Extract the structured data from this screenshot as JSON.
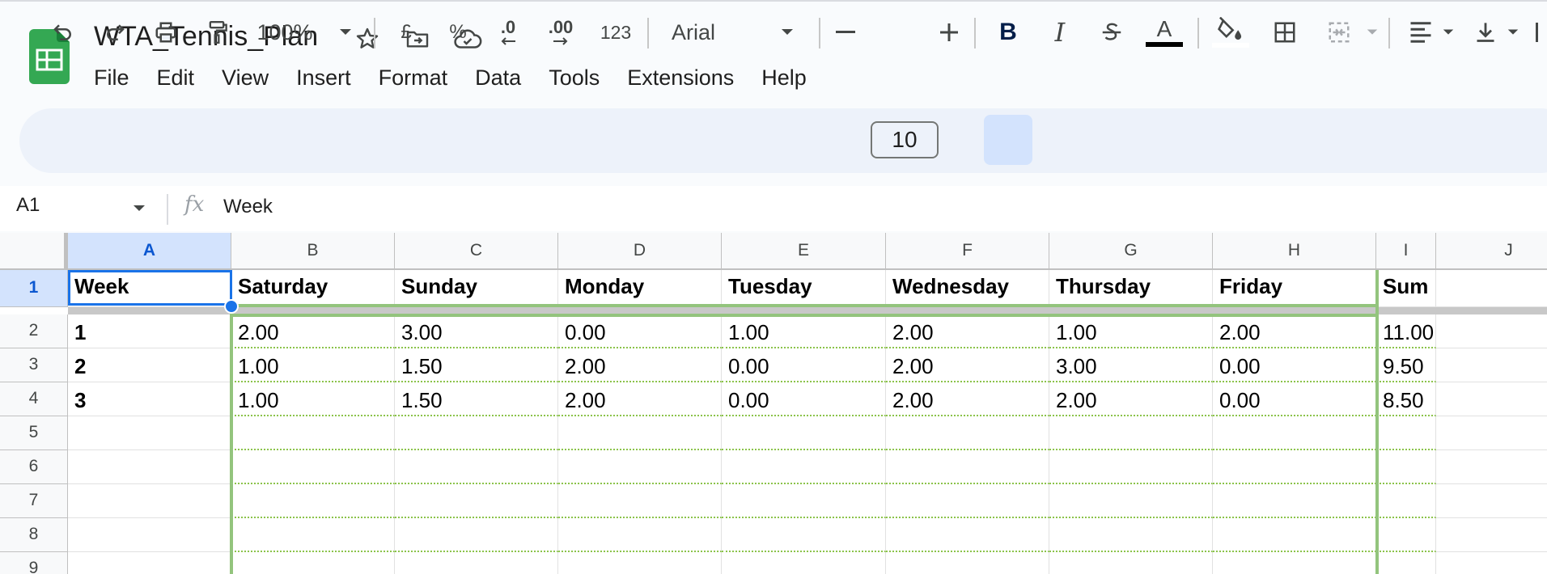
{
  "document": {
    "title": "WTA_Tennis_Plan"
  },
  "header_icons": [
    "star-icon",
    "move-to-folder-icon",
    "cloud-status-icon"
  ],
  "menu": [
    "File",
    "Edit",
    "View",
    "Insert",
    "Format",
    "Data",
    "Tools",
    "Extensions",
    "Help"
  ],
  "toolbar": {
    "zoom": "100%",
    "currency": "£",
    "percent": "%",
    "decrease_decimal": ".0",
    "increase_decimal": ".00",
    "number_format": "123",
    "font": "Arial",
    "font_size": "10",
    "text_color": "#000000",
    "active_bold": true
  },
  "formula_bar": {
    "name_box": "A1",
    "fx": "fx",
    "content": "Week"
  },
  "sheet": {
    "columns": [
      "A",
      "B",
      "C",
      "D",
      "E",
      "F",
      "G",
      "H",
      "I",
      "J"
    ],
    "selected_column": "A",
    "rows": [
      "1",
      "2",
      "3",
      "4",
      "5",
      "6",
      "7",
      "8",
      "9"
    ],
    "selected_row": "1",
    "header_row": [
      "Week",
      "Saturday",
      "Sunday",
      "Monday",
      "Tuesday",
      "Wednesday",
      "Thursday",
      "Friday",
      "Sum"
    ],
    "data_rows": [
      [
        "1",
        "2.00",
        "3.00",
        "0.00",
        "1.00",
        "2.00",
        "1.00",
        "2.00",
        "11.00"
      ],
      [
        "2",
        "1.00",
        "1.50",
        "2.00",
        "0.00",
        "2.00",
        "3.00",
        "0.00",
        "9.50"
      ],
      [
        "3",
        "1.00",
        "1.50",
        "2.00",
        "0.00",
        "2.00",
        "2.00",
        "0.00",
        "8.50"
      ]
    ],
    "selected_cell": "A1",
    "colors": {
      "selection": "#1a73e8",
      "range_border": "#93c47d",
      "header_selected_bg": "#d3e3fd"
    }
  }
}
